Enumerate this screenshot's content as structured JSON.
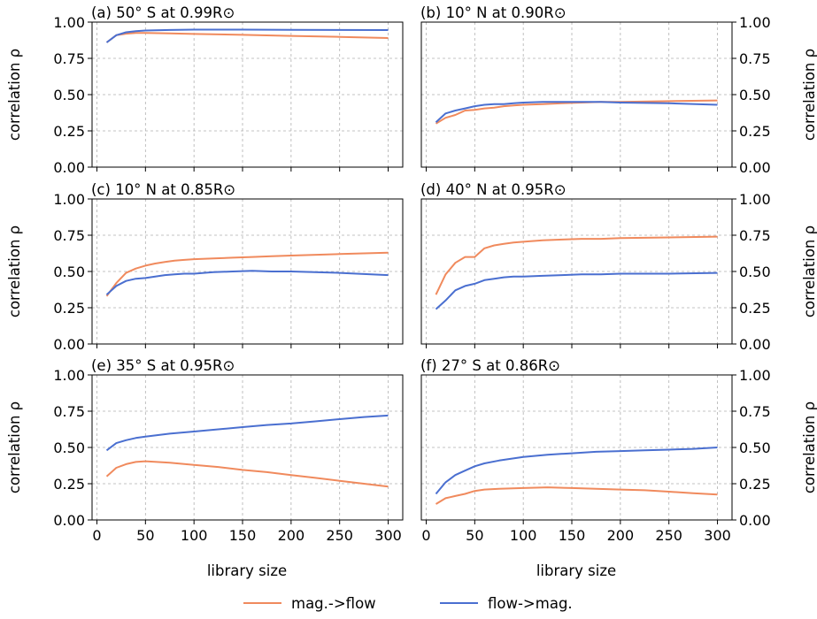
{
  "colors": {
    "mag_to_flow": "#f08a5d",
    "flow_to_mag": "#4a6fd0"
  },
  "legend": {
    "items": [
      "mag.->flow",
      "flow->mag."
    ]
  },
  "axes": {
    "ylabel": "correlation ρ",
    "xlabel": "library size",
    "yticks": [
      "0.00",
      "0.25",
      "0.50",
      "0.75",
      "1.00"
    ],
    "xticks": [
      "0",
      "50",
      "100",
      "150",
      "200",
      "250",
      "300"
    ]
  },
  "chart_data": [
    {
      "type": "line",
      "title": "(a) 50° S at 0.99R⊙",
      "xlim": [
        -5,
        315
      ],
      "ylim": [
        0,
        1
      ],
      "x": [
        10,
        20,
        30,
        40,
        50,
        75,
        100,
        150,
        200,
        250,
        300
      ],
      "series": [
        {
          "name": "mag.->flow",
          "values": [
            0.86,
            0.91,
            0.92,
            0.925,
            0.925,
            0.922,
            0.918,
            0.912,
            0.905,
            0.898,
            0.89
          ]
        },
        {
          "name": "flow->mag.",
          "values": [
            0.86,
            0.91,
            0.93,
            0.938,
            0.942,
            0.946,
            0.948,
            0.948,
            0.947,
            0.946,
            0.945
          ]
        }
      ]
    },
    {
      "type": "line",
      "title": "(b) 10° N at 0.90R⊙",
      "xlim": [
        -5,
        315
      ],
      "ylim": [
        0,
        1
      ],
      "x": [
        10,
        20,
        30,
        40,
        50,
        60,
        70,
        80,
        90,
        100,
        120,
        140,
        160,
        180,
        200,
        250,
        300
      ],
      "series": [
        {
          "name": "mag.->flow",
          "values": [
            0.3,
            0.34,
            0.36,
            0.39,
            0.395,
            0.405,
            0.41,
            0.42,
            0.425,
            0.43,
            0.435,
            0.44,
            0.445,
            0.45,
            0.45,
            0.455,
            0.46
          ]
        },
        {
          "name": "flow->mag.",
          "values": [
            0.31,
            0.37,
            0.39,
            0.405,
            0.42,
            0.43,
            0.435,
            0.435,
            0.44,
            0.445,
            0.45,
            0.45,
            0.45,
            0.45,
            0.445,
            0.44,
            0.43
          ]
        }
      ]
    },
    {
      "type": "line",
      "title": "(c) 10° N at 0.85R⊙",
      "xlim": [
        -5,
        315
      ],
      "ylim": [
        0,
        1
      ],
      "x": [
        10,
        20,
        30,
        40,
        50,
        60,
        70,
        80,
        90,
        100,
        120,
        140,
        160,
        180,
        200,
        250,
        300
      ],
      "series": [
        {
          "name": "mag.->flow",
          "values": [
            0.33,
            0.42,
            0.49,
            0.52,
            0.54,
            0.555,
            0.565,
            0.575,
            0.58,
            0.585,
            0.59,
            0.595,
            0.6,
            0.605,
            0.61,
            0.62,
            0.63
          ]
        },
        {
          "name": "flow->mag.",
          "values": [
            0.34,
            0.4,
            0.435,
            0.45,
            0.455,
            0.465,
            0.475,
            0.48,
            0.485,
            0.485,
            0.495,
            0.5,
            0.505,
            0.5,
            0.5,
            0.49,
            0.475
          ]
        }
      ]
    },
    {
      "type": "line",
      "title": "(d) 40° N at 0.95R⊙",
      "xlim": [
        -5,
        315
      ],
      "ylim": [
        0,
        1
      ],
      "x": [
        10,
        20,
        30,
        40,
        50,
        60,
        70,
        80,
        90,
        100,
        120,
        140,
        160,
        180,
        200,
        250,
        300
      ],
      "series": [
        {
          "name": "mag.->flow",
          "values": [
            0.34,
            0.48,
            0.56,
            0.6,
            0.6,
            0.66,
            0.68,
            0.69,
            0.7,
            0.705,
            0.715,
            0.72,
            0.725,
            0.725,
            0.73,
            0.735,
            0.74
          ]
        },
        {
          "name": "flow->mag.",
          "values": [
            0.24,
            0.3,
            0.37,
            0.4,
            0.415,
            0.44,
            0.45,
            0.46,
            0.465,
            0.465,
            0.47,
            0.475,
            0.48,
            0.48,
            0.485,
            0.485,
            0.49
          ]
        }
      ]
    },
    {
      "type": "line",
      "title": "(e) 35° S at 0.95R⊙",
      "xlim": [
        -5,
        315
      ],
      "ylim": [
        0,
        1
      ],
      "x": [
        10,
        20,
        30,
        40,
        50,
        75,
        100,
        125,
        150,
        175,
        200,
        225,
        250,
        275,
        300
      ],
      "series": [
        {
          "name": "mag.->flow",
          "values": [
            0.3,
            0.36,
            0.385,
            0.4,
            0.405,
            0.395,
            0.38,
            0.365,
            0.345,
            0.33,
            0.31,
            0.29,
            0.27,
            0.25,
            0.23
          ]
        },
        {
          "name": "flow->mag.",
          "values": [
            0.48,
            0.53,
            0.55,
            0.565,
            0.575,
            0.595,
            0.61,
            0.625,
            0.64,
            0.655,
            0.665,
            0.68,
            0.695,
            0.71,
            0.72
          ]
        }
      ]
    },
    {
      "type": "line",
      "title": "(f) 27° S at 0.86R⊙",
      "xlim": [
        -5,
        315
      ],
      "ylim": [
        0,
        1
      ],
      "x": [
        10,
        20,
        30,
        40,
        50,
        60,
        75,
        100,
        125,
        150,
        175,
        200,
        225,
        250,
        275,
        300
      ],
      "series": [
        {
          "name": "mag.->flow",
          "values": [
            0.11,
            0.15,
            0.165,
            0.18,
            0.2,
            0.21,
            0.215,
            0.22,
            0.225,
            0.22,
            0.215,
            0.21,
            0.205,
            0.195,
            0.185,
            0.175
          ]
        },
        {
          "name": "flow->mag.",
          "values": [
            0.18,
            0.26,
            0.31,
            0.34,
            0.37,
            0.39,
            0.41,
            0.435,
            0.45,
            0.46,
            0.47,
            0.475,
            0.48,
            0.485,
            0.49,
            0.5
          ]
        }
      ]
    }
  ]
}
